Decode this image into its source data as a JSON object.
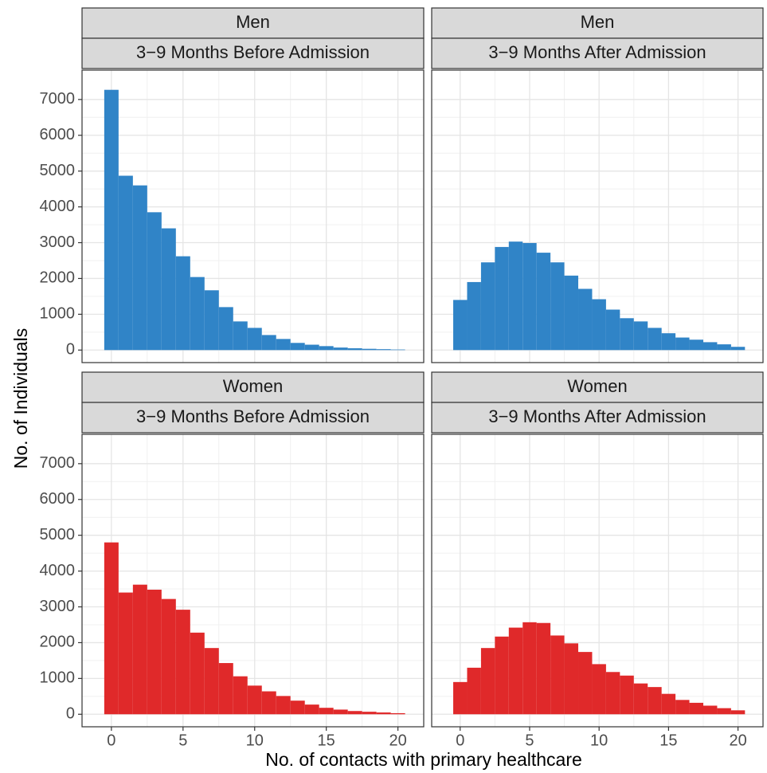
{
  "ylabel": "No. of Individuals",
  "xlabel": "No. of contacts with primary healthcare",
  "chart_data": [
    {
      "type": "histogram",
      "facet": [
        "Men",
        "3−9 Months Before Admission"
      ],
      "color": "#3084c7",
      "bins": [
        -0.5,
        0.5,
        1.5,
        2.5,
        3.5,
        4.5,
        5.5,
        6.5,
        7.5,
        8.5,
        9.5,
        10.5,
        11.5,
        12.5,
        13.5,
        14.5,
        15.5,
        16.5,
        17.5,
        18.5,
        19.5,
        20.5
      ],
      "values": [
        7270,
        4870,
        4600,
        3850,
        3400,
        2620,
        2040,
        1670,
        1200,
        800,
        620,
        420,
        310,
        200,
        150,
        110,
        70,
        50,
        35,
        25,
        15
      ],
      "xlim": [
        -2.05,
        21.8
      ],
      "ylim": [
        -350,
        7820
      ],
      "xticks": [
        0,
        5,
        10,
        15,
        20
      ],
      "yticks": [
        0,
        1000,
        2000,
        3000,
        4000,
        5000,
        6000,
        7000
      ],
      "grid": true
    },
    {
      "type": "histogram",
      "facet": [
        "Men",
        "3−9 Months After Admission"
      ],
      "color": "#3084c7",
      "bins": [
        -0.5,
        0.5,
        1.5,
        2.5,
        3.5,
        4.5,
        5.5,
        6.5,
        7.5,
        8.5,
        9.5,
        10.5,
        11.5,
        12.5,
        13.5,
        14.5,
        15.5,
        16.5,
        17.5,
        18.5,
        19.5,
        20.5
      ],
      "values": [
        1400,
        1900,
        2450,
        2880,
        3030,
        2990,
        2720,
        2450,
        2080,
        1710,
        1420,
        1130,
        890,
        800,
        620,
        470,
        350,
        290,
        220,
        160,
        90
      ],
      "xlim": [
        -2.05,
        21.8
      ],
      "ylim": [
        -350,
        7820
      ],
      "xticks": [
        0,
        5,
        10,
        15,
        20
      ],
      "yticks": [
        0,
        1000,
        2000,
        3000,
        4000,
        5000,
        6000,
        7000
      ],
      "grid": true
    },
    {
      "type": "histogram",
      "facet": [
        "Women",
        "3−9 Months Before Admission"
      ],
      "color": "#e0292a",
      "bins": [
        -0.5,
        0.5,
        1.5,
        2.5,
        3.5,
        4.5,
        5.5,
        6.5,
        7.5,
        8.5,
        9.5,
        10.5,
        11.5,
        12.5,
        13.5,
        14.5,
        15.5,
        16.5,
        17.5,
        18.5,
        19.5,
        20.5
      ],
      "values": [
        4800,
        3400,
        3620,
        3480,
        3220,
        2920,
        2280,
        1850,
        1430,
        1060,
        800,
        640,
        510,
        380,
        270,
        180,
        130,
        90,
        70,
        50,
        30
      ],
      "xlim": [
        -2.05,
        21.8
      ],
      "ylim": [
        -350,
        7820
      ],
      "xticks": [
        0,
        5,
        10,
        15,
        20
      ],
      "yticks": [
        0,
        1000,
        2000,
        3000,
        4000,
        5000,
        6000,
        7000
      ],
      "grid": true
    },
    {
      "type": "histogram",
      "facet": [
        "Women",
        "3−9 Months After Admission"
      ],
      "color": "#e0292a",
      "bins": [
        -0.5,
        0.5,
        1.5,
        2.5,
        3.5,
        4.5,
        5.5,
        6.5,
        7.5,
        8.5,
        9.5,
        10.5,
        11.5,
        12.5,
        13.5,
        14.5,
        15.5,
        16.5,
        17.5,
        18.5,
        19.5,
        20.5
      ],
      "values": [
        900,
        1300,
        1850,
        2170,
        2420,
        2570,
        2550,
        2200,
        1980,
        1740,
        1400,
        1180,
        1080,
        860,
        760,
        570,
        400,
        320,
        240,
        170,
        110
      ],
      "xlim": [
        -2.05,
        21.8
      ],
      "ylim": [
        -350,
        7820
      ],
      "xticks": [
        0,
        5,
        10,
        15,
        20
      ],
      "yticks": [
        0,
        1000,
        2000,
        3000,
        4000,
        5000,
        6000,
        7000
      ],
      "grid": true
    }
  ]
}
